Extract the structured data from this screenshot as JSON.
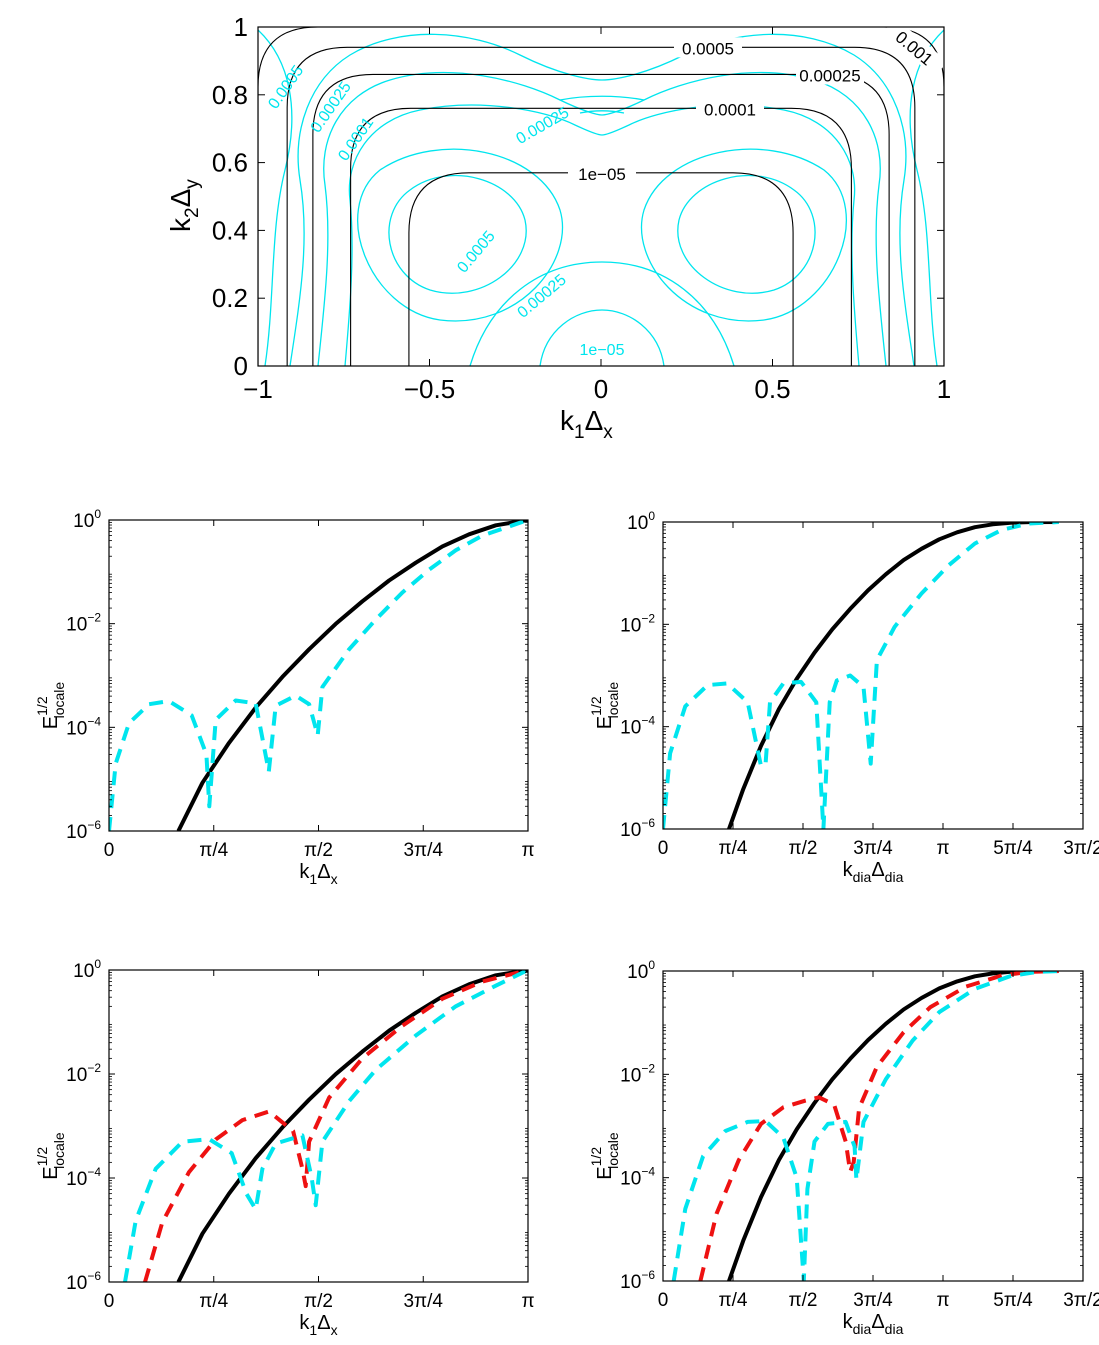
{
  "colors": {
    "black": "#000000",
    "cyan": "#00e5ee",
    "red": "#ee1111"
  },
  "chart_data": [
    {
      "type": "contour",
      "xlabel": "k1Δx",
      "ylabel": "k2Δy",
      "xlim": [
        -1,
        1
      ],
      "ylim": [
        0,
        1
      ],
      "xticks": [
        "−1",
        "−0.5",
        "0",
        "0.5",
        "1"
      ],
      "yticks": [
        "0",
        "0.2",
        "0.4",
        "0.6",
        "0.8",
        "1"
      ],
      "series": [
        {
          "color": "#000000",
          "contours": [
            {
              "level_label": "1e−05",
              "half_width": 0.56,
              "top": 0.57
            },
            {
              "level_label": "0.0001",
              "half_width": 0.73,
              "top": 0.76
            },
            {
              "level_label": "0.00025",
              "half_width": 0.84,
              "top": 0.86
            },
            {
              "level_label": "0.0005",
              "half_width": 0.915,
              "top": 0.94
            },
            {
              "level_label": "0.001",
              "half_width": 1.0,
              "top": 1.0
            }
          ]
        },
        {
          "color": "#00e5ee",
          "contour_labels": [
            "0.0005",
            "0.00025",
            "0.0001",
            "0.00025",
            "0.0005",
            "0.00025",
            "1e−05"
          ]
        }
      ]
    },
    {
      "type": "line",
      "xlabel": "k1Δx",
      "ylabel": "E^1/2 locale",
      "yscale": "log",
      "ylim": [
        1e-06,
        1
      ],
      "xlim": [
        0,
        3.1416
      ],
      "xticks": [
        "0",
        "π/4",
        "π/2",
        "3π/4",
        "π"
      ],
      "yticks": [
        "10^−6",
        "10^−4",
        "10^−2",
        "10^0"
      ],
      "series": [
        {
          "style": "solid",
          "color": "#000000",
          "x": [
            0.52,
            0.7,
            0.9,
            1.1,
            1.3,
            1.5,
            1.7,
            1.9,
            2.1,
            2.3,
            2.5,
            2.7,
            2.9,
            3.1416
          ],
          "y": [
            1e-06,
            8.5e-06,
            5e-05,
            0.00024,
            0.00094,
            0.0032,
            0.0099,
            0.027,
            0.068,
            0.15,
            0.31,
            0.53,
            0.79,
            1.0
          ]
        },
        {
          "style": "dashed",
          "color": "#00e5ee",
          "x": [
            0.0,
            0.05,
            0.15,
            0.3,
            0.45,
            0.62,
            0.73,
            0.752,
            0.8,
            0.95,
            1.1,
            1.198,
            1.25,
            1.4,
            1.5,
            1.565,
            1.6,
            1.8,
            2.0,
            2.2,
            2.4,
            2.6,
            2.8,
            3.1416
          ],
          "y": [
            1e-06,
            2e-05,
            0.00012,
            0.00028,
            0.00032,
            0.00017,
            3e-05,
            3e-06,
            0.00014,
            0.00033,
            0.00029,
            1.4e-05,
            0.00026,
            0.00041,
            0.00028,
            7e-05,
            0.0006,
            0.0032,
            0.012,
            0.04,
            0.11,
            0.26,
            0.5,
            1.0
          ]
        }
      ]
    },
    {
      "type": "line",
      "xlabel": "kdiaΔdia",
      "ylabel": "E^1/2 locale",
      "yscale": "log",
      "ylim": [
        1e-06,
        1
      ],
      "xlim": [
        0,
        4.7124
      ],
      "xticks": [
        "0",
        "π/4",
        "π/2",
        "3π/4",
        "π",
        "5π/4",
        "3π/2"
      ],
      "yticks": [
        "10^−6",
        "10^−4",
        "10^−2",
        "10^0"
      ],
      "series": [
        {
          "style": "solid",
          "color": "#000000",
          "x": [
            0.74,
            0.9,
            1.1,
            1.3,
            1.5,
            1.7,
            1.9,
            2.1,
            2.3,
            2.5,
            2.7,
            2.9,
            3.1,
            3.3,
            3.5,
            3.7,
            3.9,
            4.1,
            4.44
          ],
          "y": [
            1e-06,
            6e-06,
            4.2e-05,
            0.00022,
            0.00086,
            0.0028,
            0.008,
            0.02,
            0.046,
            0.095,
            0.18,
            0.3,
            0.46,
            0.63,
            0.79,
            0.9,
            0.97,
            0.995,
            1.0
          ]
        },
        {
          "style": "dashed",
          "color": "#00e5ee",
          "x": [
            0.0,
            0.08,
            0.25,
            0.5,
            0.72,
            0.95,
            1.1,
            1.15,
            1.2,
            1.35,
            1.55,
            1.72,
            1.8,
            1.87,
            1.95,
            2.1,
            2.25,
            2.33,
            2.4,
            2.6,
            2.9,
            3.2,
            3.5,
            3.8,
            4.1,
            4.44
          ],
          "y": [
            1e-06,
            3e-05,
            0.00025,
            0.00065,
            0.0007,
            0.0003,
            1.7e-05,
            1.8e-05,
            0.0003,
            0.0007,
            0.00075,
            0.0003,
            1e-06,
            0.0003,
            0.0008,
            0.001,
            0.0006,
            1.9e-05,
            0.002,
            0.009,
            0.04,
            0.14,
            0.38,
            0.7,
            0.93,
            1.0
          ]
        }
      ]
    },
    {
      "type": "line",
      "xlabel": "k1Δx",
      "ylabel": "E^1/2 locale",
      "yscale": "log",
      "ylim": [
        1e-06,
        1
      ],
      "xlim": [
        0,
        3.1416
      ],
      "xticks": [
        "0",
        "π/4",
        "π/2",
        "3π/4",
        "π"
      ],
      "yticks": [
        "10^−6",
        "10^−4",
        "10^−2",
        "10^0"
      ],
      "series": [
        {
          "style": "solid",
          "color": "#000000",
          "x": [
            0.52,
            0.7,
            0.9,
            1.1,
            1.3,
            1.5,
            1.7,
            1.9,
            2.1,
            2.3,
            2.5,
            2.7,
            2.9,
            3.1416
          ],
          "y": [
            1e-06,
            8.5e-06,
            5e-05,
            0.00024,
            0.00094,
            0.0032,
            0.0099,
            0.027,
            0.068,
            0.15,
            0.31,
            0.53,
            0.79,
            1.0
          ]
        },
        {
          "style": "dashed",
          "color": "#ee1111",
          "x": [
            0.27,
            0.4,
            0.6,
            0.8,
            1.0,
            1.2,
            1.38,
            1.45,
            1.475,
            1.5,
            1.65,
            1.9,
            2.2,
            2.5,
            2.8,
            3.1416
          ],
          "y": [
            1e-06,
            1.4e-05,
            0.00013,
            0.00055,
            0.0013,
            0.0019,
            0.0008,
            0.00015,
            7e-05,
            0.0005,
            0.0035,
            0.02,
            0.085,
            0.28,
            0.6,
            1.0
          ]
        },
        {
          "style": "dashed",
          "color": "#00e5ee",
          "x": [
            0.12,
            0.2,
            0.35,
            0.55,
            0.75,
            0.92,
            1.03,
            1.1,
            1.15,
            1.25,
            1.45,
            1.52,
            1.55,
            1.6,
            1.8,
            2.0,
            2.3,
            2.6,
            2.9,
            3.1416
          ],
          "y": [
            1e-06,
            1.5e-05,
            0.00015,
            0.0005,
            0.00056,
            0.0003,
            5e-05,
            2.5e-05,
            0.00015,
            0.00046,
            0.00066,
            0.0001,
            3e-05,
            0.0005,
            0.003,
            0.012,
            0.055,
            0.2,
            0.5,
            1.0
          ]
        }
      ]
    },
    {
      "type": "line",
      "xlabel": "kdiaΔdia",
      "ylabel": "E^1/2 locale",
      "yscale": "log",
      "ylim": [
        1e-06,
        1
      ],
      "xlim": [
        0,
        4.7124
      ],
      "xticks": [
        "0",
        "π/4",
        "π/2",
        "3π/4",
        "π",
        "5π/4",
        "3π/2"
      ],
      "yticks": [
        "10^−6",
        "10^−4",
        "10^−2",
        "10^0"
      ],
      "series": [
        {
          "style": "solid",
          "color": "#000000",
          "x": [
            0.74,
            0.9,
            1.1,
            1.3,
            1.5,
            1.7,
            1.9,
            2.1,
            2.3,
            2.5,
            2.7,
            2.9,
            3.1,
            3.3,
            3.5,
            3.7,
            3.9,
            4.1,
            4.44
          ],
          "y": [
            1e-06,
            6e-06,
            4.2e-05,
            0.00022,
            0.00086,
            0.0028,
            0.008,
            0.02,
            0.046,
            0.095,
            0.18,
            0.3,
            0.46,
            0.63,
            0.79,
            0.9,
            0.97,
            0.995,
            1.0
          ]
        },
        {
          "style": "dashed",
          "color": "#ee1111",
          "x": [
            0.42,
            0.6,
            0.85,
            1.1,
            1.35,
            1.6,
            1.75,
            1.92,
            2.05,
            2.1,
            2.14,
            2.2,
            2.4,
            2.7,
            3.0,
            3.4,
            3.8,
            4.1,
            4.44
          ],
          "y": [
            1e-06,
            2e-05,
            0.00022,
            0.0011,
            0.0023,
            0.0031,
            0.0036,
            0.0026,
            0.0005,
            0.00013,
            0.0002,
            0.0022,
            0.014,
            0.065,
            0.2,
            0.5,
            0.82,
            0.96,
            1.0
          ]
        },
        {
          "style": "dashed",
          "color": "#00e5ee",
          "x": [
            0.12,
            0.25,
            0.45,
            0.7,
            0.95,
            1.15,
            1.35,
            1.5,
            1.58,
            1.62,
            1.7,
            1.85,
            2.05,
            2.15,
            2.17,
            2.25,
            2.5,
            2.8,
            3.1,
            3.5,
            3.9,
            4.2,
            4.44
          ],
          "y": [
            1e-06,
            2.5e-05,
            0.00026,
            0.0008,
            0.0012,
            0.00125,
            0.0006,
            0.0001,
            1e-06,
            6e-05,
            0.0005,
            0.0011,
            0.0012,
            0.0004,
            9e-05,
            0.0012,
            0.008,
            0.045,
            0.16,
            0.45,
            0.8,
            0.96,
            1.0
          ]
        }
      ]
    }
  ]
}
